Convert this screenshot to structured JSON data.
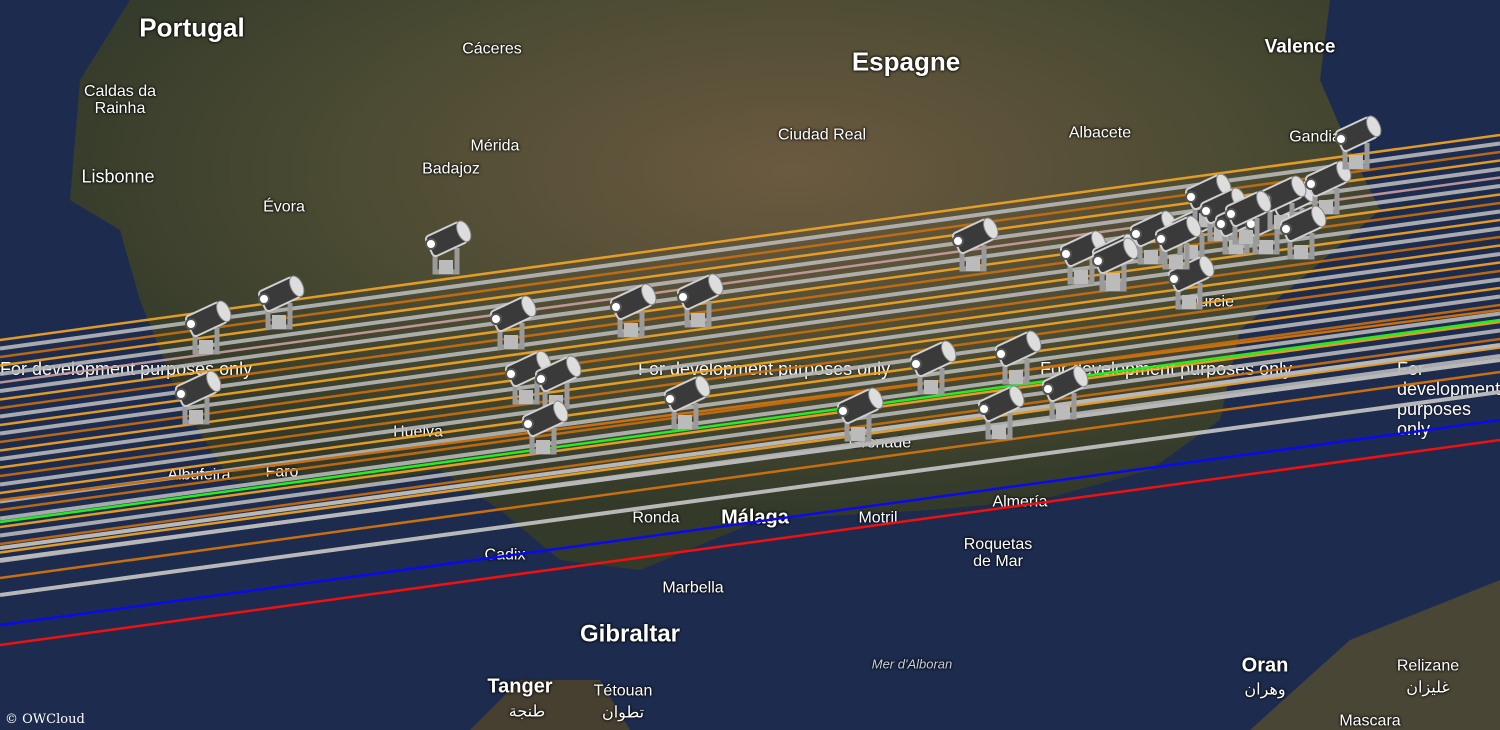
{
  "map": {
    "country_labels": [
      "Portugal",
      "Espagne"
    ],
    "city_labels": [
      "Cáceres",
      "Valence",
      "Caldas da Rainha",
      "Lisbonne",
      "Mérida",
      "Badajoz",
      "Ciudad Real",
      "Albacete",
      "Évora",
      "Gandia",
      "Murcie",
      "Huelva",
      "Albufeira",
      "Faro",
      "Grenade",
      "Almería",
      "Ronda",
      "Málaga",
      "Motril",
      "Cadix",
      "Roquetas de Mar",
      "Marbella",
      "Gibraltar",
      "Tanger",
      "Tétouan",
      "تطوان",
      "طنجة",
      "Oran",
      "وهران",
      "Relizane",
      "غليزان",
      "Mascara"
    ],
    "sea_labels": [
      "Mer d'Alboran"
    ],
    "watermark": "For development purposes only",
    "credit": "© OWCloud"
  },
  "overlay": {
    "marker_icon": "spotlight-icon",
    "line_colors": {
      "orange": "#f5a623",
      "dark_orange": "#c8700f",
      "gray": "#b8b8b8",
      "green": "#22ee22",
      "blue": "#0a0aee",
      "red": "#ee1111",
      "pink": "#c9a0a0"
    }
  }
}
